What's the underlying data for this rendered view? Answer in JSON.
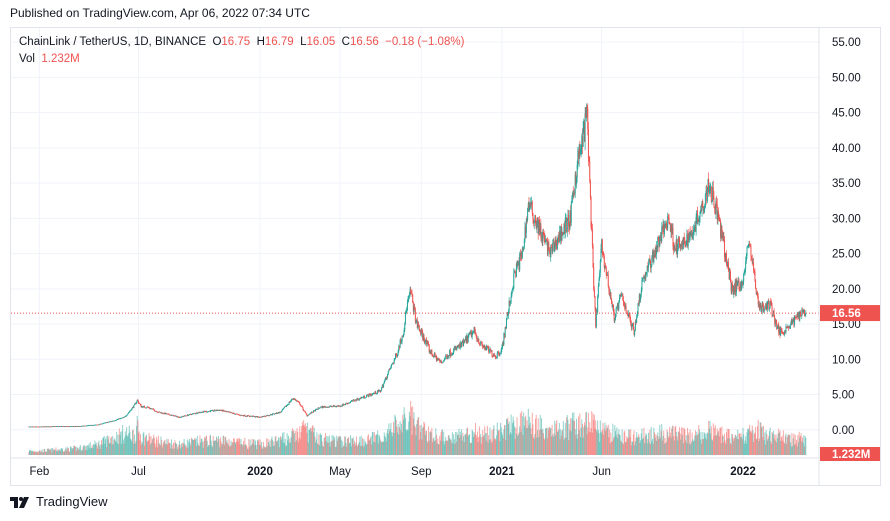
{
  "header": {
    "published": "Published on TradingView.com, Apr 06, 2022 07:34 UTC"
  },
  "legend": {
    "symbol": "ChainLink / TetherUS, 1D, BINANCE",
    "o_label": "O",
    "o_value": "16.75",
    "h_label": "H",
    "h_value": "16.79",
    "l_label": "L",
    "l_value": "16.05",
    "c_label": "C",
    "c_value": "16.56",
    "change": "−0.18 (−1.08%)",
    "vol_label": "Vol",
    "vol_value": "1.232M"
  },
  "footer": {
    "brand": "TradingView"
  },
  "colors": {
    "up": "#26a69a",
    "down": "#ef5350",
    "grid": "#f0f3fa",
    "axis_text": "#131722"
  },
  "chart_data": {
    "type": "candlestick",
    "title": "ChainLink / TetherUS, 1D, BINANCE",
    "x_tick_labels": [
      "Feb",
      "Jul",
      "2020",
      "May",
      "Sep",
      "2021",
      "Jun",
      "2022"
    ],
    "y_tick_labels": [
      "0.00",
      "5.00",
      "10.00",
      "15.00",
      "20.00",
      "25.00",
      "30.00",
      "35.00",
      "40.00",
      "45.00",
      "50.00",
      "55.00"
    ],
    "ylim": [
      -4,
      57
    ],
    "grid": true,
    "last_price": 16.56,
    "last_price_label": "16.56",
    "last_volume_label": "1.232M",
    "series": [
      {
        "name": "Price",
        "x": [
          "2019-01-16",
          "2019-02-01",
          "2019-03-01",
          "2019-04-01",
          "2019-05-01",
          "2019-05-20",
          "2019-06-10",
          "2019-06-25",
          "2019-06-29",
          "2019-07-05",
          "2019-07-15",
          "2019-08-01",
          "2019-09-01",
          "2019-10-01",
          "2019-11-01",
          "2019-12-01",
          "2020-01-01",
          "2020-02-01",
          "2020-02-20",
          "2020-03-01",
          "2020-03-12",
          "2020-03-13",
          "2020-04-01",
          "2020-05-01",
          "2020-06-01",
          "2020-07-01",
          "2020-07-15",
          "2020-07-25",
          "2020-08-05",
          "2020-08-10",
          "2020-08-16",
          "2020-08-25",
          "2020-09-05",
          "2020-09-15",
          "2020-10-01",
          "2020-10-15",
          "2020-11-01",
          "2020-11-20",
          "2020-12-01",
          "2020-12-23",
          "2021-01-01",
          "2021-01-20",
          "2021-02-01",
          "2021-02-10",
          "2021-02-20",
          "2021-03-01",
          "2021-03-15",
          "2021-04-01",
          "2021-04-15",
          "2021-04-25",
          "2021-05-01",
          "2021-05-10",
          "2021-05-20",
          "2021-05-23",
          "2021-06-01",
          "2021-06-20",
          "2021-07-01",
          "2021-07-20",
          "2021-08-01",
          "2021-08-15",
          "2021-09-01",
          "2021-09-10",
          "2021-09-20",
          "2021-10-01",
          "2021-10-15",
          "2021-11-01",
          "2021-11-10",
          "2021-11-20",
          "2021-12-01",
          "2021-12-15",
          "2022-01-01",
          "2022-01-10",
          "2022-01-24",
          "2022-02-01",
          "2022-02-10",
          "2022-02-24",
          "2022-03-01",
          "2022-03-15",
          "2022-04-01",
          "2022-04-06"
        ],
        "values": [
          0.45,
          0.45,
          0.5,
          0.5,
          0.75,
          1.2,
          1.8,
          3.5,
          4.2,
          3.3,
          3.2,
          2.5,
          1.8,
          2.5,
          2.8,
          2.1,
          1.8,
          2.5,
          4.5,
          3.7,
          2.0,
          2.1,
          3.2,
          3.4,
          4.5,
          5.5,
          8.5,
          10.5,
          14,
          17.5,
          19.5,
          15,
          13,
          11,
          9.5,
          11,
          12,
          14,
          12,
          10.5,
          11.5,
          22,
          25,
          32,
          30,
          28,
          25,
          28,
          30,
          38,
          40,
          45,
          20,
          15,
          26,
          16,
          19,
          14,
          21,
          24,
          28,
          30,
          26,
          26,
          28,
          32,
          35,
          32,
          27,
          20,
          21,
          27,
          18,
          17,
          18,
          14,
          14,
          15,
          17,
          16.56
        ]
      },
      {
        "name": "Vol",
        "values": [
          0.3,
          0.3,
          0.4,
          0.5,
          0.8,
          1.2,
          1.6,
          1.5,
          2.0,
          1.4,
          1.2,
          1.0,
          0.8,
          1.0,
          1.1,
          0.9,
          0.8,
          1.1,
          1.4,
          1.6,
          2.2,
          1.8,
          1.2,
          1.0,
          1.1,
          1.3,
          1.8,
          2.2,
          2.4,
          2.6,
          2.8,
          2.0,
          1.8,
          1.6,
          1.3,
          1.4,
          1.5,
          1.7,
          1.6,
          1.6,
          1.9,
          2.2,
          2.4,
          2.4,
          2.3,
          2.1,
          1.9,
          2.0,
          2.1,
          2.3,
          2.2,
          2.4,
          2.8,
          2.0,
          1.7,
          1.6,
          1.4,
          1.3,
          1.4,
          1.5,
          1.6,
          1.6,
          1.5,
          1.4,
          1.4,
          1.6,
          1.8,
          1.6,
          1.5,
          1.4,
          1.4,
          1.6,
          1.8,
          1.5,
          1.4,
          1.4,
          1.3,
          1.2,
          1.2,
          1.232
        ]
      }
    ]
  }
}
